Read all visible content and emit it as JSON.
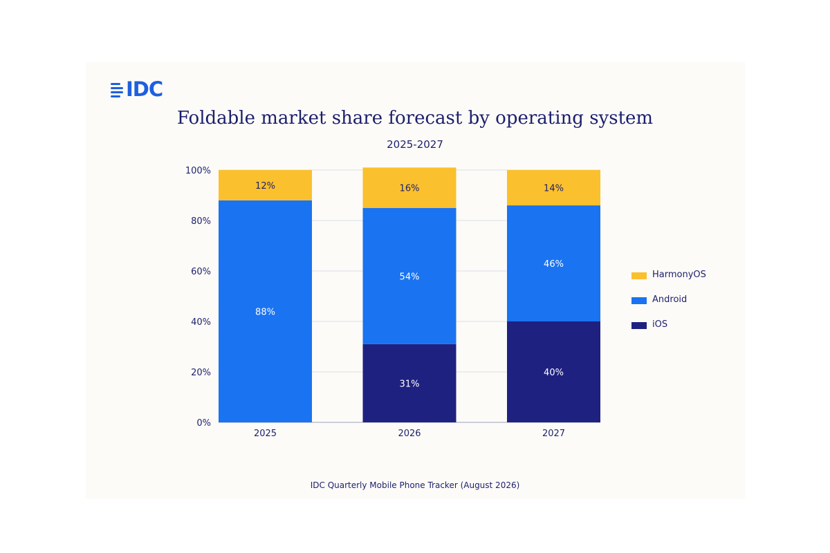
{
  "logo_text": "IDC",
  "chart_data": {
    "type": "bar",
    "stacked": true,
    "title": "Foldable market share forecast by operating system",
    "subtitle": "2025-2027",
    "categories": [
      "2025",
      "2026",
      "2027"
    ],
    "series": [
      {
        "name": "iOS",
        "values": [
          0,
          31,
          40
        ],
        "labels": [
          "",
          "31%",
          "40%"
        ],
        "color": "#1f2180"
      },
      {
        "name": "Android",
        "values": [
          88,
          54,
          46
        ],
        "labels": [
          "88%",
          "54%",
          "46%"
        ],
        "color": "#1a73f0"
      },
      {
        "name": "HarmonyOS",
        "values": [
          12,
          16,
          14
        ],
        "labels": [
          "12%",
          "16%",
          "14%"
        ],
        "color": "#fbc02d"
      }
    ],
    "legend_order": [
      "HarmonyOS",
      "Android",
      "iOS"
    ],
    "yticks": [
      "0%",
      "20%",
      "40%",
      "60%",
      "80%",
      "100%"
    ],
    "ylim": [
      0,
      100
    ],
    "grid": true,
    "legend_position": "right"
  },
  "source": "IDC Quarterly Mobile Phone Tracker (August 2026)"
}
